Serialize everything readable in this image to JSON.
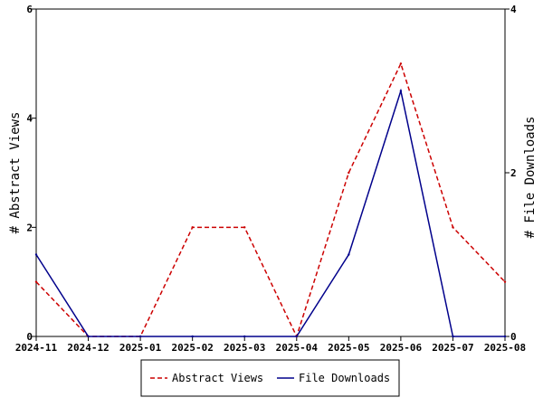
{
  "chart_data": {
    "type": "line",
    "categories": [
      "2024-11",
      "2024-12",
      "2025-01",
      "2025-02",
      "2025-03",
      "2025-04",
      "2025-05",
      "2025-06",
      "2025-07",
      "2025-08"
    ],
    "series": [
      {
        "name": "Abstract Views",
        "axis": "left",
        "color": "#cc0000",
        "dash": "dashed",
        "values": [
          1,
          0,
          0,
          2,
          2,
          0,
          3,
          5,
          2,
          1
        ]
      },
      {
        "name": "File Downloads",
        "axis": "right",
        "color": "#00008b",
        "dash": "solid",
        "values": [
          1,
          0,
          0,
          0,
          0,
          0,
          1,
          3,
          0,
          0
        ]
      }
    ],
    "ylabel_left": "# Abstract Views",
    "ylabel_right": "# File Downloads",
    "ylim_left": [
      0,
      6
    ],
    "ylim_right": [
      0,
      4
    ],
    "yticks_left": [
      0,
      2,
      4,
      6
    ],
    "yticks_right": [
      0,
      2,
      4
    ],
    "grid": false,
    "legend_position": "bottom-center"
  }
}
